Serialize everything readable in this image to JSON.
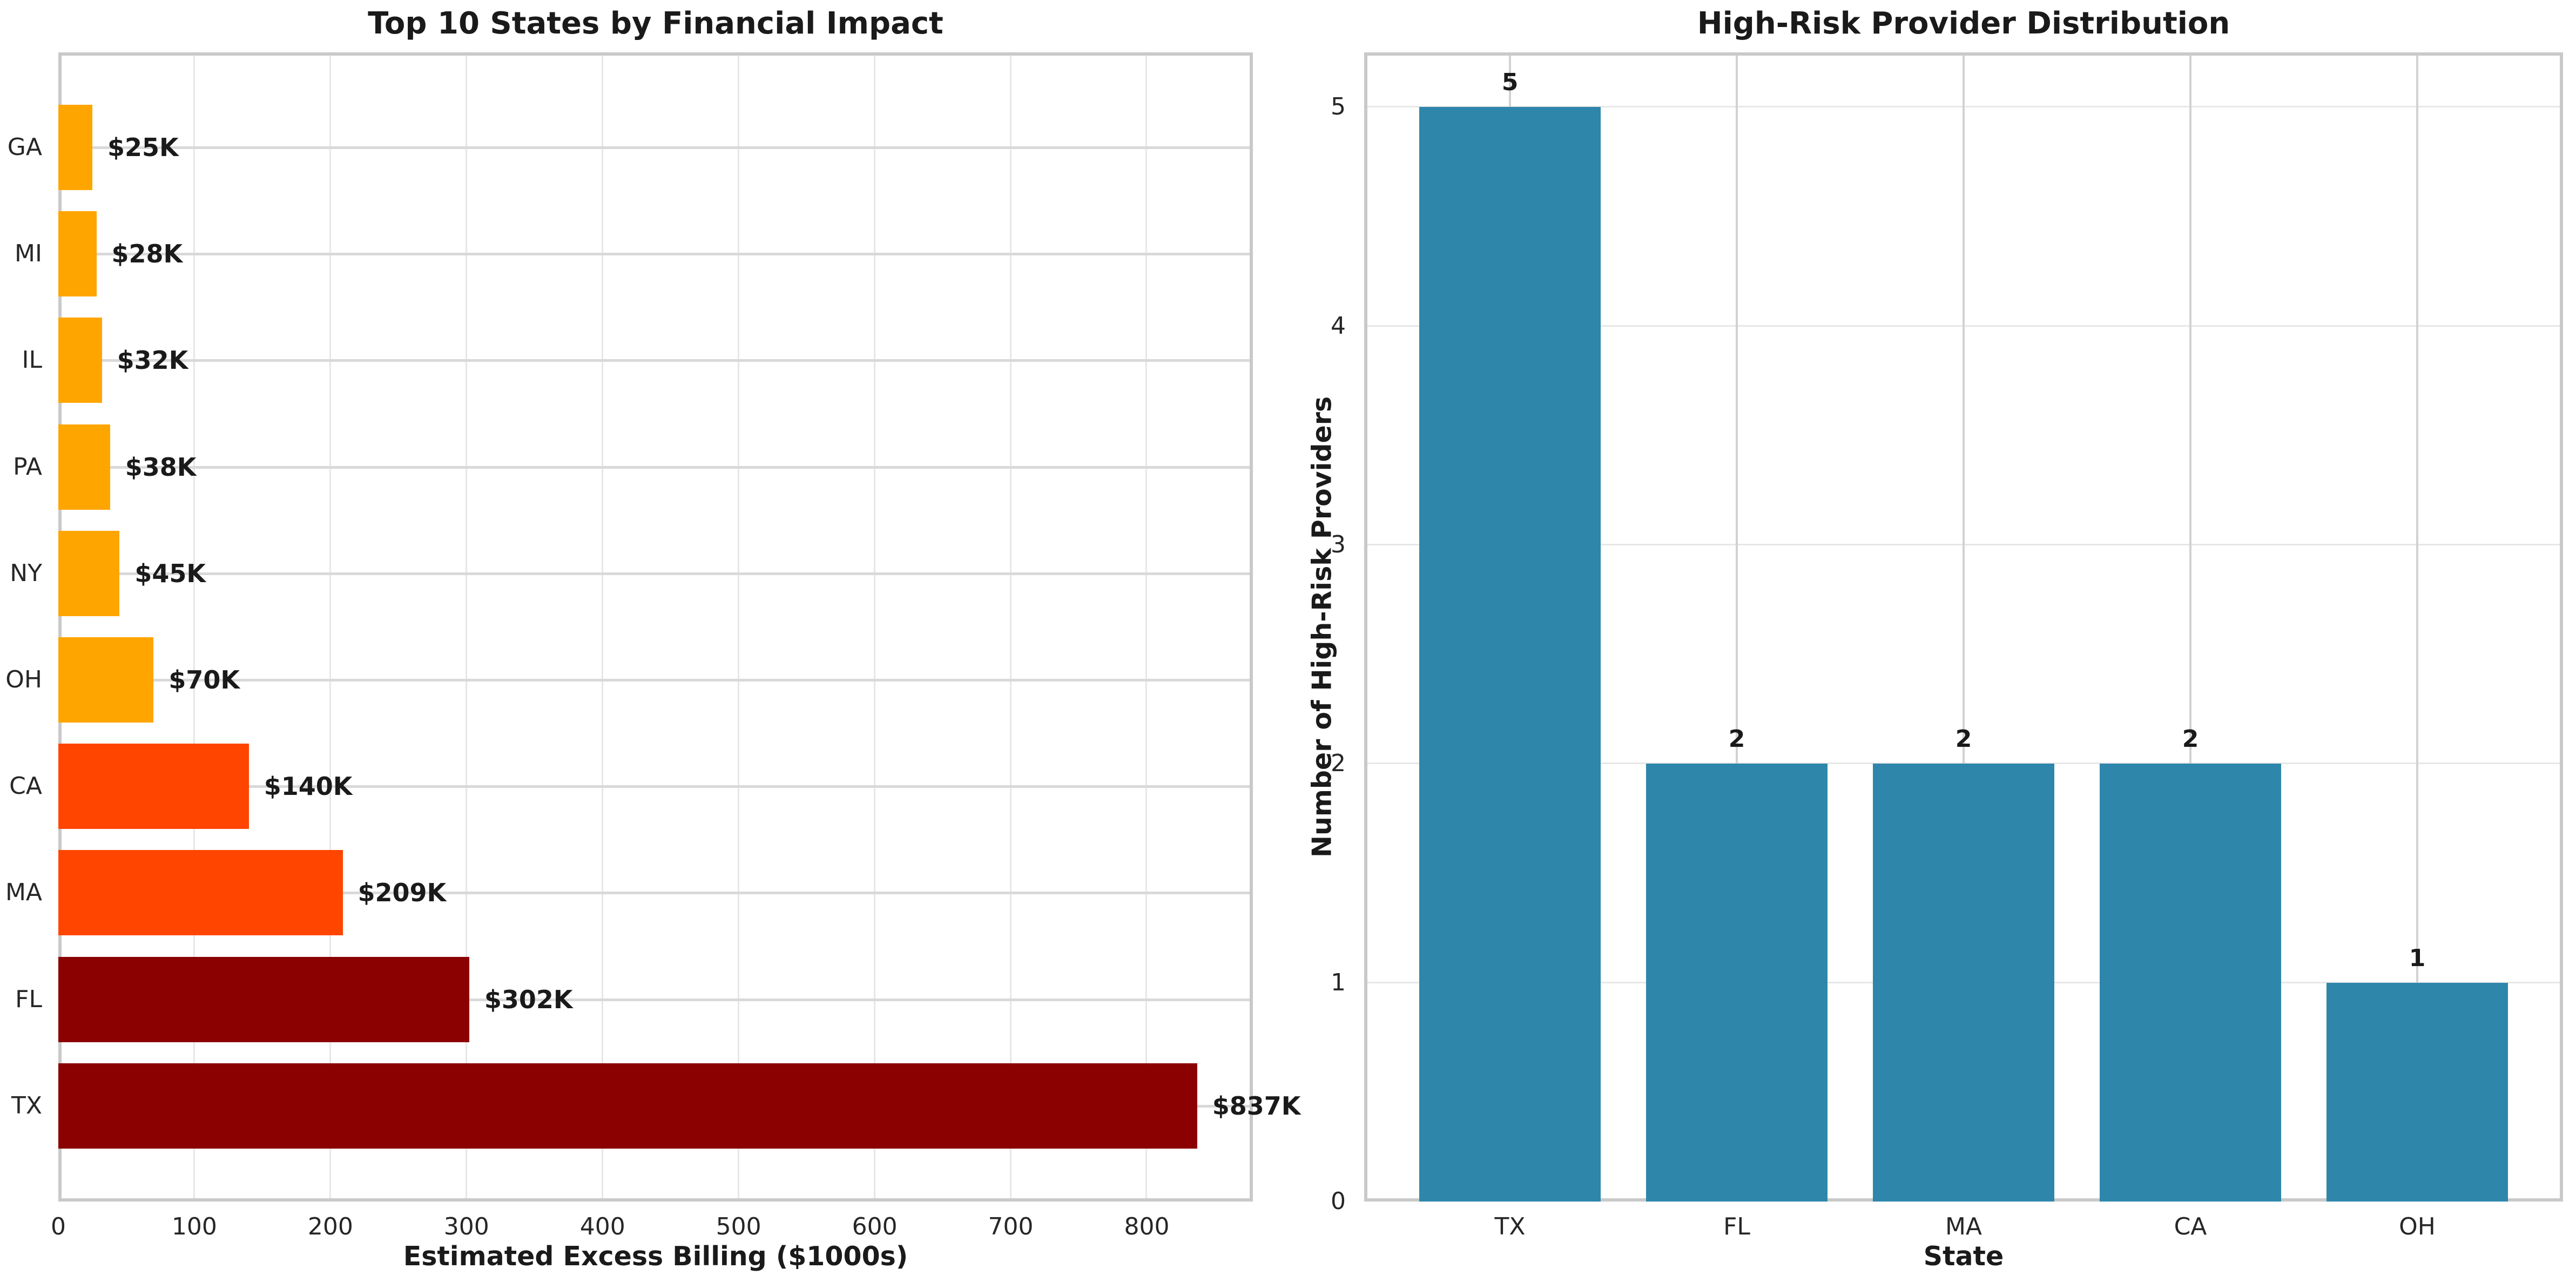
{
  "figure": {
    "background": "#FFFFFF"
  },
  "colors": {
    "orange": "#FFA500",
    "orangered": "#FF4500",
    "darkred": "#8B0000",
    "teal": "#2E86AB",
    "spine": "#C9C9C9",
    "grid_numeric": "#E7E7E7",
    "grid_categorical_left": "#D9D9D9",
    "grid_categorical_right": "#D2D2D2",
    "title_text": "#1A1A1A",
    "tick_text": "#262626"
  },
  "chart_data": [
    {
      "type": "bar",
      "orientation": "horizontal",
      "title": "Top 10 States by Financial Impact",
      "xlabel": "Estimated Excess Billing ($1000s)",
      "ylabel": "",
      "categories": [
        "GA",
        "MI",
        "IL",
        "PA",
        "NY",
        "OH",
        "CA",
        "MA",
        "FL",
        "TX"
      ],
      "values": [
        25,
        28,
        32,
        38,
        45,
        70,
        140,
        209,
        302,
        837
      ],
      "value_labels": [
        "$25K",
        "$28K",
        "$32K",
        "$38K",
        "$45K",
        "$70K",
        "$140K",
        "$209K",
        "$302K",
        "$837K"
      ],
      "bar_colors": [
        "#FFA500",
        "#FFA500",
        "#FFA500",
        "#FFA500",
        "#FFA500",
        "#FFA500",
        "#FF4500",
        "#FF4500",
        "#8B0000",
        "#8B0000"
      ],
      "x_ticks": [
        0,
        100,
        200,
        300,
        400,
        500,
        600,
        700,
        800
      ],
      "xlim": [
        0,
        878
      ],
      "grid": true,
      "legend": null
    },
    {
      "type": "bar",
      "orientation": "vertical",
      "title": "High-Risk Provider Distribution",
      "xlabel": "State",
      "ylabel": "Number of High-Risk Providers",
      "categories": [
        "TX",
        "FL",
        "MA",
        "CA",
        "OH"
      ],
      "values": [
        5,
        2,
        2,
        2,
        1
      ],
      "value_labels": [
        "5",
        "2",
        "2",
        "2",
        "1"
      ],
      "bar_color": "#2E86AB",
      "y_ticks": [
        0,
        1,
        2,
        3,
        4,
        5
      ],
      "ylim": [
        0,
        5.25
      ],
      "grid": true,
      "legend": null
    }
  ]
}
